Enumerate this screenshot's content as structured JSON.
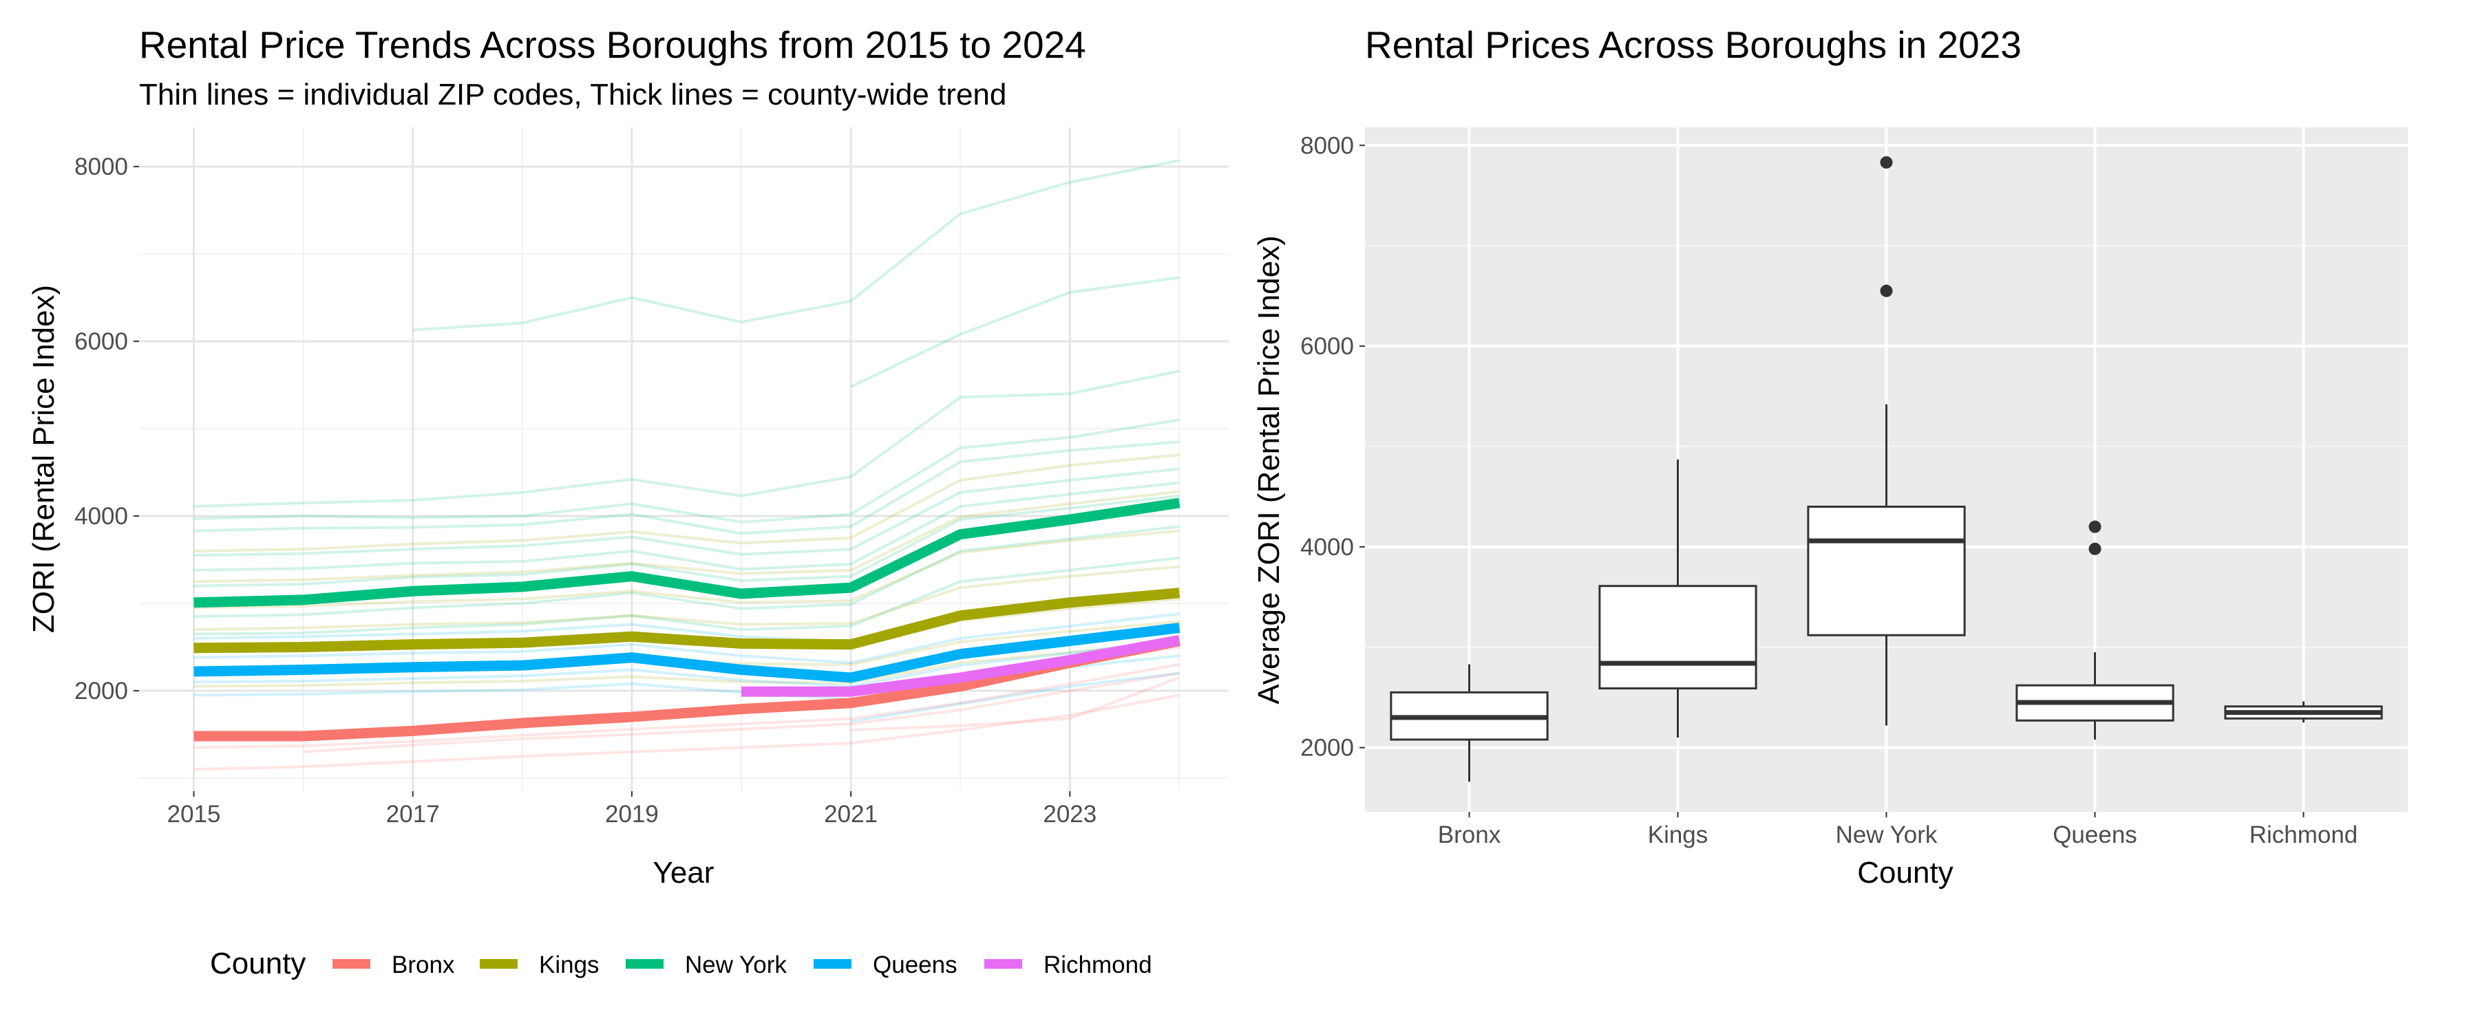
{
  "colors": {
    "Bronx": "#F8766D",
    "Kings": "#A3A500",
    "New York": "#00BF7D",
    "Queens": "#00B0F6",
    "Richmond": "#E76BF3"
  },
  "chart_data": [
    {
      "type": "line",
      "title": "Rental Price Trends Across Boroughs from 2015 to 2024",
      "subtitle": "Thin lines = individual ZIP codes, Thick lines = county-wide trend",
      "xlabel": "Year",
      "ylabel": "ZORI (Rental Price Index)",
      "xlim": [
        2014.5,
        2024.45
      ],
      "ylim": [
        850,
        8450
      ],
      "x_ticks": [
        2015,
        2017,
        2019,
        2021,
        2023
      ],
      "y_ticks": [
        2000,
        4000,
        6000,
        8000
      ],
      "grid": true,
      "legend": {
        "title": "County",
        "position": "bottom",
        "entries": [
          "Bronx",
          "Kings",
          "New York",
          "Queens",
          "Richmond"
        ]
      },
      "series": [
        {
          "name": "Bronx",
          "x": [
            2015,
            2016,
            2017,
            2018,
            2019,
            2020,
            2021,
            2022,
            2023,
            2024
          ],
          "values": [
            1480,
            1480,
            1540,
            1630,
            1700,
            1790,
            1860,
            2050,
            2320,
            2570
          ]
        },
        {
          "name": "Kings",
          "x": [
            2015,
            2016,
            2017,
            2018,
            2019,
            2020,
            2021,
            2022,
            2023,
            2024
          ],
          "values": [
            2490,
            2500,
            2530,
            2550,
            2620,
            2540,
            2530,
            2860,
            3010,
            3120
          ]
        },
        {
          "name": "New York",
          "x": [
            2015,
            2016,
            2017,
            2018,
            2019,
            2020,
            2021,
            2022,
            2023,
            2024
          ],
          "values": [
            3010,
            3040,
            3140,
            3190,
            3310,
            3110,
            3180,
            3790,
            3960,
            4150
          ]
        },
        {
          "name": "Queens",
          "x": [
            2015,
            2016,
            2017,
            2018,
            2019,
            2020,
            2021,
            2022,
            2023,
            2024
          ],
          "values": [
            2220,
            2240,
            2270,
            2290,
            2380,
            2240,
            2150,
            2420,
            2570,
            2720
          ]
        },
        {
          "name": "Richmond",
          "x": [
            2020,
            2021,
            2022,
            2023,
            2024
          ],
          "values": [
            1990,
            1990,
            2150,
            2350,
            2580
          ]
        }
      ],
      "zip_lines": [
        {
          "county": "New York",
          "x": [
            2017,
            2018,
            2019,
            2020,
            2021,
            2022,
            2023,
            2024
          ],
          "values": [
            6130,
            6210,
            6500,
            6220,
            6460,
            7460,
            7820,
            8070
          ]
        },
        {
          "county": "New York",
          "x": [
            2021,
            2022,
            2023,
            2024
          ],
          "values": [
            5480,
            6080,
            6560,
            6730
          ]
        },
        {
          "county": "New York",
          "x": [
            2015,
            2016,
            2017,
            2018,
            2019,
            2020,
            2021,
            2022,
            2023,
            2024
          ],
          "values": [
            4110,
            4150,
            4180,
            4270,
            4420,
            4230,
            4450,
            5360,
            5400,
            5660
          ]
        },
        {
          "county": "New York",
          "x": [
            2015,
            2016,
            2017,
            2018,
            2019,
            2020,
            2021,
            2022,
            2023,
            2024
          ],
          "values": [
            3970,
            4000,
            3980,
            4000,
            4140,
            3930,
            4020,
            4780,
            4900,
            5100
          ]
        },
        {
          "county": "New York",
          "x": [
            2015,
            2016,
            2017,
            2018,
            2019,
            2020,
            2021,
            2022,
            2023,
            2024
          ],
          "values": [
            3830,
            3860,
            3870,
            3900,
            4020,
            3800,
            3880,
            4620,
            4750,
            4850
          ]
        },
        {
          "county": "New York",
          "x": [
            2015,
            2016,
            2017,
            2018,
            2019,
            2020,
            2021,
            2022,
            2023,
            2024
          ],
          "values": [
            3550,
            3570,
            3620,
            3660,
            3760,
            3560,
            3620,
            4270,
            4410,
            4540
          ]
        },
        {
          "county": "New York",
          "x": [
            2015,
            2016,
            2017,
            2018,
            2019,
            2020,
            2021,
            2022,
            2023,
            2024
          ],
          "values": [
            3380,
            3400,
            3460,
            3480,
            3600,
            3390,
            3450,
            4110,
            4250,
            4380
          ]
        },
        {
          "county": "New York",
          "x": [
            2015,
            2016,
            2017,
            2018,
            2019,
            2020,
            2021,
            2022,
            2023,
            2024
          ],
          "values": [
            3200,
            3220,
            3300,
            3330,
            3450,
            3260,
            3310,
            3960,
            4090,
            4230
          ]
        },
        {
          "county": "New York",
          "x": [
            2015,
            2016,
            2017,
            2018,
            2019,
            2020,
            2021,
            2022,
            2023,
            2024
          ],
          "values": [
            2850,
            2870,
            2950,
            3000,
            3120,
            2940,
            2990,
            3600,
            3740,
            3880
          ]
        },
        {
          "county": "New York",
          "x": [
            2015,
            2016,
            2017,
            2018,
            2019,
            2020,
            2021,
            2022,
            2023,
            2024
          ],
          "values": [
            2650,
            2660,
            2720,
            2760,
            2860,
            2700,
            2740,
            3250,
            3380,
            3520
          ]
        },
        {
          "county": "Kings",
          "x": [
            2015,
            2016,
            2017,
            2018,
            2019,
            2020,
            2021,
            2022,
            2023,
            2024
          ],
          "values": [
            3600,
            3620,
            3680,
            3720,
            3820,
            3690,
            3750,
            4410,
            4580,
            4700
          ]
        },
        {
          "county": "Kings",
          "x": [
            2015,
            2016,
            2017,
            2018,
            2019,
            2020,
            2021,
            2022,
            2023,
            2024
          ],
          "values": [
            3250,
            3270,
            3320,
            3360,
            3460,
            3340,
            3380,
            3990,
            4140,
            4280
          ]
        },
        {
          "county": "Kings",
          "x": [
            2015,
            2016,
            2017,
            2018,
            2019,
            2020,
            2021,
            2022,
            2023,
            2024
          ],
          "values": [
            2950,
            2970,
            3020,
            3050,
            3140,
            3010,
            3030,
            3580,
            3720,
            3830
          ]
        },
        {
          "county": "Kings",
          "x": [
            2015,
            2016,
            2017,
            2018,
            2019,
            2020,
            2021,
            2022,
            2023,
            2024
          ],
          "values": [
            2700,
            2720,
            2760,
            2780,
            2860,
            2760,
            2770,
            3180,
            3310,
            3420
          ]
        },
        {
          "county": "Kings",
          "x": [
            2015,
            2016,
            2017,
            2018,
            2019,
            2020,
            2021,
            2022,
            2023,
            2024
          ],
          "values": [
            2450,
            2460,
            2500,
            2520,
            2590,
            2510,
            2500,
            2800,
            2940,
            3050
          ]
        },
        {
          "county": "Kings",
          "x": [
            2015,
            2016,
            2017,
            2018,
            2019,
            2020,
            2021,
            2022,
            2023,
            2024
          ],
          "values": [
            2250,
            2270,
            2300,
            2320,
            2380,
            2310,
            2300,
            2560,
            2680,
            2790
          ]
        },
        {
          "county": "Kings",
          "x": [
            2015,
            2016,
            2017,
            2018,
            2019,
            2020,
            2021,
            2022,
            2023,
            2024
          ],
          "values": [
            2050,
            2060,
            2090,
            2110,
            2160,
            2100,
            2090,
            2320,
            2440,
            2560
          ]
        },
        {
          "county": "Queens",
          "x": [
            2015,
            2016,
            2017,
            2018,
            2019,
            2020,
            2021,
            2022,
            2023,
            2024
          ],
          "values": [
            2600,
            2620,
            2650,
            2680,
            2760,
            2620,
            2560,
            2860,
            3000,
            3150
          ]
        },
        {
          "county": "Queens",
          "x": [
            2015,
            2016,
            2017,
            2018,
            2019,
            2020,
            2021,
            2022,
            2023,
            2024
          ],
          "values": [
            2380,
            2400,
            2430,
            2450,
            2530,
            2400,
            2320,
            2600,
            2740,
            2880
          ]
        },
        {
          "county": "Queens",
          "x": [
            2015,
            2016,
            2017,
            2018,
            2019,
            2020,
            2021,
            2022,
            2023,
            2024
          ],
          "values": [
            2100,
            2110,
            2140,
            2170,
            2240,
            2120,
            2050,
            2290,
            2430,
            2580
          ]
        },
        {
          "county": "Queens",
          "x": [
            2015,
            2016,
            2017,
            2018,
            2019,
            2020,
            2021,
            2022,
            2023,
            2024
          ],
          "values": [
            1950,
            1960,
            1990,
            2010,
            2080,
            1980,
            1900,
            2140,
            2270,
            2400
          ]
        },
        {
          "county": "Queens",
          "x": [
            2021,
            2022,
            2023,
            2024
          ],
          "values": [
            1650,
            1850,
            2050,
            2200
          ]
        },
        {
          "county": "Bronx",
          "x": [
            2015,
            2016,
            2017,
            2018,
            2019,
            2020,
            2021,
            2022,
            2023,
            2024
          ],
          "values": [
            1100,
            1130,
            1190,
            1250,
            1300,
            1350,
            1400,
            1550,
            1720,
            1950
          ]
        },
        {
          "county": "Bronx",
          "x": [
            2015,
            2016,
            2017,
            2018,
            2019,
            2020,
            2021,
            2022,
            2023,
            2024
          ],
          "values": [
            1350,
            1370,
            1420,
            1490,
            1560,
            1620,
            1680,
            1860,
            2080,
            2300
          ]
        },
        {
          "county": "Bronx",
          "x": [
            2016,
            2017,
            2018,
            2019,
            2020,
            2021,
            2022,
            2023,
            2024
          ],
          "values": [
            1300,
            1380,
            1450,
            1500,
            1560,
            1620,
            1780,
            2000,
            2200
          ]
        },
        {
          "county": "Bronx",
          "x": [
            2021,
            2022,
            2023,
            2024
          ],
          "values": [
            1550,
            1600,
            1680,
            2150
          ]
        },
        {
          "county": "Richmond",
          "x": [
            2020,
            2021,
            2022,
            2023,
            2024
          ],
          "values": [
            1950,
            1960,
            2120,
            2300,
            2500
          ]
        }
      ]
    },
    {
      "type": "box",
      "title": "Rental Prices Across Boroughs in 2023",
      "xlabel": "County",
      "ylabel": "Average ZORI (Rental Price Index)",
      "categories": [
        "Bronx",
        "Kings",
        "New York",
        "Queens",
        "Richmond"
      ],
      "ylim": [
        1360,
        8180
      ],
      "y_ticks": [
        2000,
        4000,
        6000,
        8000
      ],
      "grid": true,
      "boxes": [
        {
          "name": "Bronx",
          "min": 1660,
          "q1": 2080,
          "median": 2300,
          "q3": 2550,
          "max": 2830,
          "outliers": []
        },
        {
          "name": "Kings",
          "min": 2100,
          "q1": 2590,
          "median": 2840,
          "q3": 3610,
          "max": 4870,
          "outliers": []
        },
        {
          "name": "New York",
          "min": 2220,
          "q1": 3120,
          "median": 4060,
          "q3": 4400,
          "max": 5420,
          "outliers": [
            6550,
            7830
          ]
        },
        {
          "name": "Queens",
          "min": 2080,
          "q1": 2270,
          "median": 2450,
          "q3": 2620,
          "max": 2950,
          "outliers": [
            3980,
            4200
          ]
        },
        {
          "name": "Richmond",
          "min": 2250,
          "q1": 2290,
          "median": 2350,
          "q3": 2410,
          "max": 2460,
          "outliers": []
        }
      ]
    }
  ]
}
